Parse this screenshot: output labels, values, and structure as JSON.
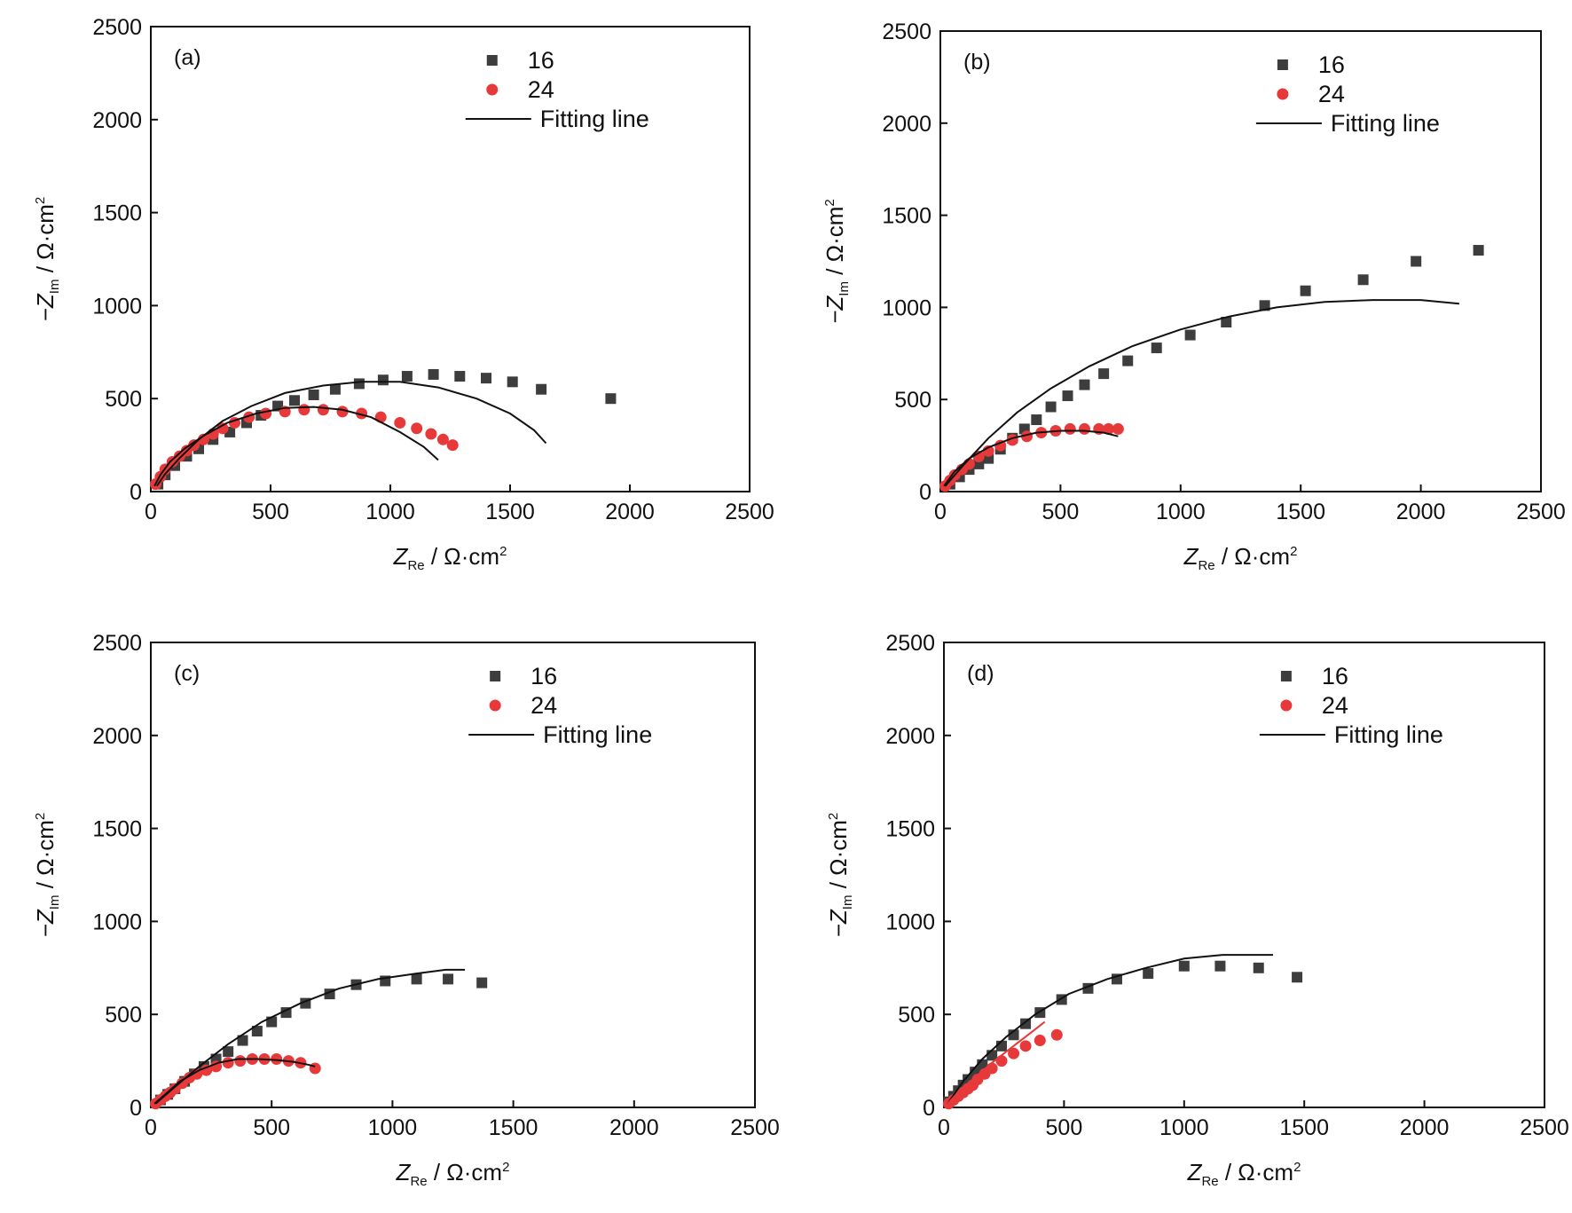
{
  "chart_data": [
    {
      "type": "scatter",
      "panel_label": "(a)",
      "xlabel": {
        "var": "Z",
        "sub": "Re",
        "unit": " / Ω·cm",
        "sup": "2"
      },
      "ylabel": {
        "var": "−Z",
        "sub": "Im",
        "unit": " / Ω·cm",
        "sup": "2"
      },
      "xlim": [
        0,
        2500
      ],
      "ylim": [
        0,
        2500
      ],
      "xticks": [
        "0",
        "500",
        "1000",
        "1500",
        "2000",
        "2500"
      ],
      "yticks": [
        "0",
        "500",
        "1000",
        "1500",
        "2000",
        "2500"
      ],
      "legend": {
        "position": "top-right",
        "entries": [
          "16",
          "24",
          "Fitting line"
        ]
      },
      "series": [
        {
          "name": "16",
          "marker": "square",
          "color": "#3d3d3d",
          "x": [
            30,
            60,
            100,
            150,
            200,
            260,
            330,
            400,
            460,
            530,
            600,
            680,
            770,
            870,
            970,
            1070,
            1180,
            1290,
            1400,
            1510,
            1630,
            1920
          ],
          "y": [
            40,
            90,
            140,
            190,
            230,
            280,
            320,
            370,
            410,
            460,
            490,
            520,
            550,
            580,
            600,
            620,
            630,
            620,
            610,
            590,
            550,
            500
          ]
        },
        {
          "name": "24",
          "marker": "circle",
          "color": "#e8393a",
          "x": [
            20,
            40,
            60,
            90,
            120,
            150,
            180,
            220,
            260,
            300,
            350,
            410,
            480,
            560,
            640,
            720,
            800,
            880,
            960,
            1040,
            1110,
            1170,
            1220,
            1260
          ],
          "y": [
            40,
            80,
            120,
            160,
            190,
            220,
            250,
            280,
            310,
            340,
            370,
            400,
            420,
            430,
            440,
            440,
            430,
            420,
            400,
            370,
            340,
            310,
            280,
            250
          ]
        },
        {
          "name": "fit-16",
          "line": true,
          "color": "#111111",
          "x": [
            25,
            60,
            120,
            200,
            300,
            420,
            560,
            720,
            880,
            1040,
            1200,
            1360,
            1500,
            1600,
            1650
          ],
          "y": [
            30,
            95,
            180,
            280,
            380,
            460,
            530,
            570,
            590,
            590,
            560,
            500,
            420,
            330,
            260
          ]
        },
        {
          "name": "fit-24",
          "line": true,
          "color": "#111111",
          "x": [
            15,
            40,
            80,
            140,
            220,
            320,
            440,
            560,
            680,
            800,
            920,
            1040,
            1140,
            1200
          ],
          "y": [
            30,
            90,
            160,
            230,
            300,
            370,
            420,
            450,
            455,
            440,
            400,
            320,
            240,
            170
          ]
        }
      ]
    },
    {
      "type": "scatter",
      "panel_label": "(b)",
      "xlabel": {
        "var": "Z",
        "sub": "Re",
        "unit": " / Ω·cm",
        "sup": "2"
      },
      "ylabel": {
        "var": "−Z",
        "sub": "Im",
        "unit": " / Ω·cm",
        "sup": "2"
      },
      "xlim": [
        0,
        2500
      ],
      "ylim": [
        0,
        2500
      ],
      "xticks": [
        "0",
        "500",
        "1000",
        "1500",
        "2000",
        "2500"
      ],
      "yticks": [
        "0",
        "500",
        "1000",
        "1500",
        "2000",
        "2500"
      ],
      "legend": {
        "position": "top-right",
        "entries": [
          "16",
          "24",
          "Fitting line"
        ]
      },
      "series": [
        {
          "name": "16",
          "marker": "square",
          "color": "#3d3d3d",
          "x": [
            40,
            80,
            120,
            160,
            200,
            250,
            300,
            350,
            400,
            460,
            530,
            600,
            680,
            780,
            900,
            1040,
            1190,
            1350,
            1520,
            1760,
            1980,
            2240
          ],
          "y": [
            40,
            80,
            120,
            150,
            180,
            230,
            290,
            340,
            390,
            460,
            520,
            580,
            640,
            710,
            780,
            850,
            920,
            1010,
            1090,
            1150,
            1250,
            1310
          ]
        },
        {
          "name": "24",
          "marker": "circle",
          "color": "#e8393a",
          "x": [
            20,
            40,
            60,
            90,
            120,
            160,
            200,
            250,
            300,
            360,
            420,
            480,
            540,
            600,
            660,
            700,
            740
          ],
          "y": [
            30,
            60,
            90,
            120,
            150,
            190,
            220,
            250,
            280,
            300,
            320,
            330,
            340,
            340,
            340,
            340,
            340
          ]
        },
        {
          "name": "fit-16",
          "line": true,
          "color": "#111111",
          "x": [
            20,
            100,
            200,
            320,
            460,
            620,
            800,
            1000,
            1200,
            1400,
            1600,
            1800,
            2000,
            2160
          ],
          "y": [
            30,
            150,
            290,
            430,
            560,
            680,
            790,
            880,
            950,
            1000,
            1030,
            1040,
            1040,
            1020
          ]
        },
        {
          "name": "fit-24",
          "line": true,
          "color": "#111111",
          "x": [
            15,
            60,
            120,
            200,
            300,
            400,
            500,
            600,
            680,
            740
          ],
          "y": [
            30,
            110,
            180,
            240,
            290,
            320,
            330,
            330,
            320,
            300
          ]
        }
      ]
    },
    {
      "type": "scatter",
      "panel_label": "(c)",
      "xlabel": {
        "var": "Z",
        "sub": "Re",
        "unit": " / Ω·cm",
        "sup": "2"
      },
      "ylabel": {
        "var": "−Z",
        "sub": "Im",
        "unit": " / Ω·cm",
        "sup": "2"
      },
      "xlim": [
        0,
        2500
      ],
      "ylim": [
        0,
        2500
      ],
      "xticks": [
        "0",
        "500",
        "1000",
        "1500",
        "2000",
        "2500"
      ],
      "yticks": [
        "0",
        "500",
        "1000",
        "1500",
        "2000",
        "2500"
      ],
      "legend": {
        "position": "top-right",
        "entries": [
          "16",
          "24",
          "Fitting line"
        ]
      },
      "series": [
        {
          "name": "16",
          "marker": "square",
          "color": "#3d3d3d",
          "x": [
            40,
            70,
            100,
            140,
            180,
            220,
            270,
            320,
            380,
            440,
            500,
            560,
            640,
            740,
            850,
            970,
            1100,
            1230,
            1370
          ],
          "y": [
            40,
            70,
            100,
            140,
            180,
            220,
            260,
            300,
            360,
            410,
            460,
            510,
            560,
            610,
            660,
            680,
            690,
            690,
            670
          ]
        },
        {
          "name": "24",
          "marker": "circle",
          "color": "#e8393a",
          "x": [
            20,
            40,
            60,
            80,
            100,
            130,
            160,
            190,
            230,
            270,
            320,
            370,
            420,
            470,
            520,
            570,
            620,
            680
          ],
          "y": [
            20,
            40,
            60,
            80,
            100,
            130,
            160,
            180,
            200,
            220,
            240,
            250,
            260,
            260,
            260,
            250,
            240,
            210
          ]
        },
        {
          "name": "fit-16",
          "line": true,
          "color": "#111111",
          "x": [
            20,
            100,
            200,
            320,
            460,
            620,
            780,
            940,
            1100,
            1220,
            1300
          ],
          "y": [
            20,
            110,
            220,
            340,
            460,
            560,
            640,
            690,
            720,
            740,
            740
          ]
        },
        {
          "name": "fit-24",
          "line": true,
          "color": "#111111",
          "x": [
            15,
            60,
            120,
            200,
            280,
            360,
            440,
            520,
            590,
            650,
            680
          ],
          "y": [
            20,
            70,
            140,
            200,
            240,
            260,
            260,
            255,
            245,
            230,
            220
          ]
        }
      ]
    },
    {
      "type": "scatter",
      "panel_label": "(d)",
      "xlabel": {
        "var": "Z",
        "sub": "Re",
        "unit": " / Ω·cm",
        "sup": "2"
      },
      "ylabel": {
        "var": "−Z",
        "sub": "Im",
        "unit": " / Ω·cm",
        "sup": "2"
      },
      "xlim": [
        0,
        2500
      ],
      "ylim": [
        0,
        2500
      ],
      "xticks": [
        "0",
        "500",
        "1000",
        "1500",
        "2000",
        "2500"
      ],
      "yticks": [
        "0",
        "500",
        "1000",
        "1500",
        "2000",
        "2500"
      ],
      "legend": {
        "position": "top-right",
        "entries": [
          "16",
          "24",
          "Fitting line"
        ]
      },
      "series": [
        {
          "name": "16",
          "marker": "square",
          "color": "#3d3d3d",
          "x": [
            20,
            40,
            60,
            80,
            100,
            130,
            160,
            200,
            240,
            290,
            340,
            400,
            490,
            600,
            720,
            850,
            1000,
            1150,
            1310,
            1470
          ],
          "y": [
            30,
            60,
            90,
            120,
            150,
            190,
            230,
            280,
            330,
            390,
            450,
            510,
            580,
            640,
            690,
            720,
            760,
            760,
            750,
            700
          ]
        },
        {
          "name": "24",
          "marker": "circle",
          "color": "#e8393a",
          "x": [
            20,
            40,
            60,
            80,
            100,
            120,
            140,
            170,
            200,
            240,
            290,
            340,
            400,
            470
          ],
          "y": [
            20,
            40,
            60,
            80,
            100,
            120,
            150,
            180,
            210,
            250,
            290,
            330,
            360,
            390
          ]
        },
        {
          "name": "fit-16",
          "line": true,
          "color": "#111111",
          "x": [
            15,
            80,
            160,
            260,
            380,
            520,
            680,
            840,
            1000,
            1160,
            1280,
            1370
          ],
          "y": [
            20,
            140,
            260,
            380,
            500,
            610,
            690,
            750,
            800,
            820,
            820,
            820
          ]
        },
        {
          "name": "fit-24",
          "line": true,
          "color": "#e8393a",
          "x": [
            15,
            60,
            120,
            200,
            280,
            360,
            420
          ],
          "y": [
            20,
            80,
            150,
            240,
            320,
            400,
            460
          ]
        }
      ]
    }
  ]
}
